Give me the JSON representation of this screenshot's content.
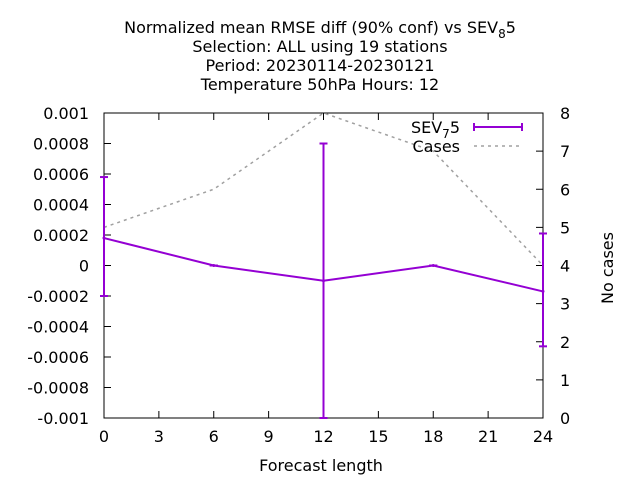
{
  "chart_data": {
    "type": "line",
    "title_lines": [
      [
        "Normalized mean RMSE diff (90% conf) vs SEV",
        "8",
        "5"
      ],
      [
        "Selection: ALL using    19 stations"
      ],
      [
        "Period: 20230114-20230121"
      ],
      [
        "Temperature 50hPa   Hours:  12"
      ]
    ],
    "xlabel": "Forecast length",
    "ylabel": "",
    "y2label": "No cases",
    "x_ticks": [
      0,
      3,
      6,
      9,
      12,
      15,
      18,
      21,
      24
    ],
    "xlim": [
      0,
      24
    ],
    "ylim": [
      -0.001,
      0.001
    ],
    "y_ticks": [
      -0.001,
      -0.0008,
      -0.0006,
      -0.0004,
      -0.0002,
      0,
      0.0002,
      0.0004,
      0.0006,
      0.0008,
      0.001
    ],
    "y_tick_labels": [
      "-0.001",
      "-0.0008",
      "-0.0006",
      "-0.0004",
      "-0.0002",
      "0",
      "0.0002",
      "0.0004",
      "0.0006",
      "0.0008",
      "0.001"
    ],
    "y2lim": [
      0,
      8
    ],
    "y2_ticks": [
      0,
      1,
      2,
      3,
      4,
      5,
      6,
      7,
      8
    ],
    "grid": false,
    "legend_position": "top-right",
    "series": [
      {
        "name": "SEV",
        "name_sub": "7",
        "name_suffix": "5",
        "axis": "y1",
        "style": "line-errorbars",
        "color": "#9400d3",
        "x": [
          0,
          6,
          12,
          18,
          24
        ],
        "y": [
          0.00018,
          0.0,
          -0.0001,
          0.0,
          -0.00017
        ],
        "err_low": [
          -0.0002,
          0.0,
          -0.001,
          0.0,
          -0.00053
        ],
        "err_high": [
          0.00058,
          0.0,
          0.0008,
          0.0,
          0.00021
        ]
      },
      {
        "name": "Cases",
        "axis": "y2",
        "style": "dashed",
        "color": "#a0a0a0",
        "x": [
          0,
          6,
          12,
          18,
          24
        ],
        "y": [
          5,
          6,
          8,
          7,
          4
        ]
      }
    ]
  }
}
